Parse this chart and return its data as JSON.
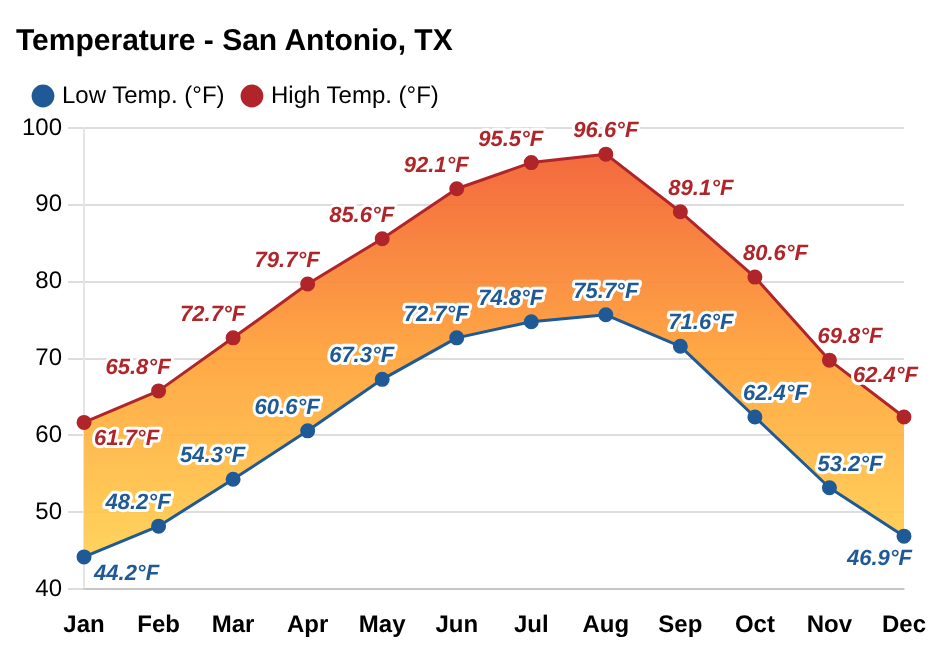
{
  "chart_data": {
    "type": "line",
    "title": "Temperature - San Antonio, TX",
    "categories": [
      "Jan",
      "Feb",
      "Mar",
      "Apr",
      "May",
      "Jun",
      "Jul",
      "Aug",
      "Sep",
      "Oct",
      "Nov",
      "Dec"
    ],
    "series": [
      {
        "name": "Low Temp. (°F)",
        "color": "#1f5a96",
        "values": [
          44.2,
          48.2,
          54.3,
          60.6,
          67.3,
          72.7,
          74.8,
          75.7,
          71.6,
          62.4,
          53.2,
          46.9
        ],
        "value_labels": [
          "44.2°F",
          "48.2°F",
          "54.3°F",
          "60.6°F",
          "67.3°F",
          "72.7°F",
          "74.8°F",
          "75.7°F",
          "71.6°F",
          "62.4°F",
          "53.2°F",
          "46.9°F"
        ]
      },
      {
        "name": "High Temp. (°F)",
        "color": "#b0252a",
        "values": [
          61.7,
          65.8,
          72.7,
          79.7,
          85.6,
          92.1,
          95.5,
          96.6,
          89.1,
          80.6,
          69.8,
          62.4
        ],
        "value_labels": [
          "61.7°F",
          "65.8°F",
          "72.7°F",
          "79.7°F",
          "85.6°F",
          "92.1°F",
          "95.5°F",
          "96.6°F",
          "89.1°F",
          "80.6°F",
          "69.8°F",
          "62.4°F"
        ]
      }
    ],
    "ylim": [
      40,
      100
    ],
    "yticks": [
      40,
      50,
      60,
      70,
      80,
      90,
      100
    ],
    "grid": "y",
    "legend": "top left",
    "marker": "circle",
    "line_style": "solid"
  }
}
